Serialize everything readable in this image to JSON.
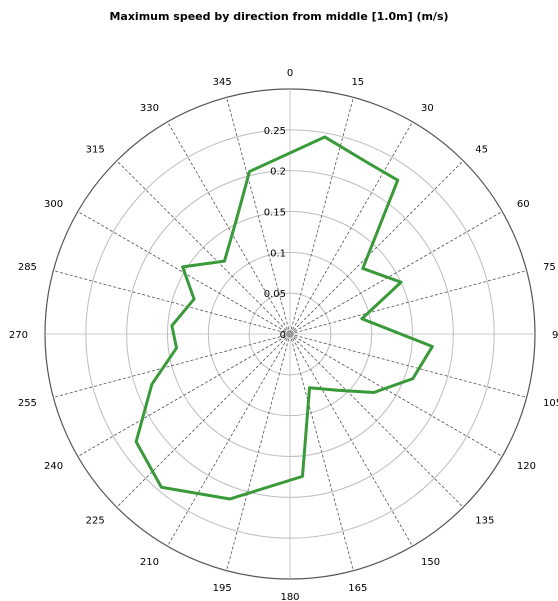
{
  "chart_data": {
    "type": "line",
    "subtype": "polar",
    "title": "Maximum speed by direction from middle [1.0m] (m/s)",
    "angle_labels": [
      0,
      15,
      30,
      45,
      60,
      75,
      90,
      105,
      120,
      135,
      150,
      165,
      180,
      195,
      210,
      225,
      240,
      255,
      270,
      285,
      300,
      315,
      330,
      345
    ],
    "radial_ticks": [
      "0",
      "0.05",
      "0.1",
      "0.15",
      "0.2",
      "0.25"
    ],
    "rlim": [
      0,
      0.3
    ],
    "grid": true,
    "direction": "clockwise",
    "zero_location": "top",
    "color": "#3a9a3a",
    "series": [
      {
        "points": [
          [
            10,
            0.245
          ],
          [
            25,
            0.23
          ],
          [
            35,
            0.23
          ],
          [
            48,
            0.12
          ],
          [
            65,
            0.15
          ],
          [
            78,
            0.09
          ],
          [
            95,
            0.175
          ],
          [
            110,
            0.16
          ],
          [
            125,
            0.125
          ],
          [
            140,
            0.09
          ],
          [
            160,
            0.07
          ],
          [
            175,
            0.175
          ],
          [
            200,
            0.215
          ],
          [
            220,
            0.245
          ],
          [
            235,
            0.23
          ],
          [
            250,
            0.18
          ],
          [
            263,
            0.14
          ],
          [
            274,
            0.145
          ],
          [
            290,
            0.125
          ],
          [
            302,
            0.155
          ],
          [
            318,
            0.12
          ],
          [
            335,
            0.155
          ],
          [
            346,
            0.205
          ]
        ]
      }
    ]
  }
}
